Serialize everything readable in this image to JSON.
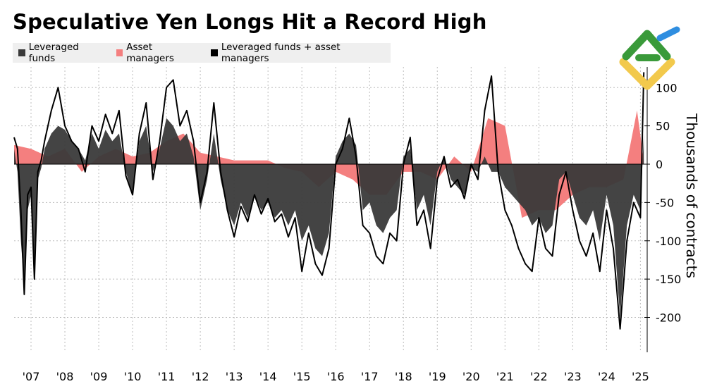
{
  "title": "Speculative Yen Longs Hit a Record High",
  "colors": {
    "leveraged": "#3a3a3a",
    "asset": "#f47f7f",
    "combined": "#000000",
    "grid": "#bdbdbd"
  },
  "legend": [
    {
      "label": "Leveraged funds",
      "color": "#3a3a3a"
    },
    {
      "label": "Asset managers",
      "color": "#f47f7f"
    },
    {
      "label": "Leveraged funds + asset managers",
      "color": "#000000"
    }
  ],
  "chart_data": {
    "type": "area",
    "title": "Speculative Yen Longs Hit a Record High",
    "ylabel": "Thousands of contracts",
    "xlabel": "",
    "ylim": [
      -240,
      150
    ],
    "yticks": [
      100,
      50,
      0,
      -50,
      -100,
      -150,
      -200
    ],
    "xlim": [
      2006.5,
      2025.2
    ],
    "xticks": [
      {
        "x": 2007,
        "label": "'07"
      },
      {
        "x": 2008,
        "label": "'08"
      },
      {
        "x": 2009,
        "label": "'09"
      },
      {
        "x": 2010,
        "label": "'10"
      },
      {
        "x": 2011,
        "label": "'11"
      },
      {
        "x": 2012,
        "label": "'12"
      },
      {
        "x": 2013,
        "label": "'13"
      },
      {
        "x": 2014,
        "label": "'14"
      },
      {
        "x": 2015,
        "label": "'15"
      },
      {
        "x": 2016,
        "label": "'16"
      },
      {
        "x": 2017,
        "label": "'17"
      },
      {
        "x": 2018,
        "label": "'18"
      },
      {
        "x": 2019,
        "label": "'19"
      },
      {
        "x": 2020,
        "label": "'20"
      },
      {
        "x": 2021,
        "label": "'21"
      },
      {
        "x": 2022,
        "label": "'22"
      },
      {
        "x": 2023,
        "label": "'23"
      },
      {
        "x": 2024,
        "label": "'24"
      },
      {
        "x": 2025,
        "label": "'25"
      }
    ],
    "series": [
      {
        "name": "Leveraged funds",
        "x": [
          2006.5,
          2006.6,
          2006.7,
          2006.8,
          2006.9,
          2007.0,
          2007.1,
          2007.2,
          2007.3,
          2007.4,
          2007.6,
          2007.8,
          2008.0,
          2008.2,
          2008.4,
          2008.6,
          2008.8,
          2009.0,
          2009.2,
          2009.4,
          2009.6,
          2009.8,
          2010.0,
          2010.2,
          2010.4,
          2010.6,
          2010.8,
          2011.0,
          2011.2,
          2011.4,
          2011.6,
          2011.8,
          2012.0,
          2012.2,
          2012.4,
          2012.6,
          2012.8,
          2013.0,
          2013.2,
          2013.4,
          2013.6,
          2013.8,
          2014.0,
          2014.2,
          2014.4,
          2014.6,
          2014.8,
          2015.0,
          2015.2,
          2015.4,
          2015.6,
          2015.8,
          2016.0,
          2016.2,
          2016.4,
          2016.6,
          2016.8,
          2017.0,
          2017.2,
          2017.4,
          2017.6,
          2017.8,
          2018.0,
          2018.2,
          2018.4,
          2018.6,
          2018.8,
          2019.0,
          2019.2,
          2019.4,
          2019.6,
          2019.8,
          2020.0,
          2020.2,
          2020.4,
          2020.6,
          2020.8,
          2021.0,
          2021.2,
          2021.4,
          2021.6,
          2021.8,
          2022.0,
          2022.2,
          2022.4,
          2022.6,
          2022.8,
          2023.0,
          2023.2,
          2023.4,
          2023.6,
          2023.8,
          2024.0,
          2024.2,
          2024.4,
          2024.6,
          2024.8,
          2025.0,
          2025.1
        ],
        "values": [
          20,
          -10,
          -100,
          -160,
          -60,
          -40,
          -140,
          -20,
          -5,
          20,
          40,
          50,
          45,
          30,
          20,
          5,
          40,
          20,
          45,
          30,
          40,
          -10,
          -40,
          30,
          50,
          -10,
          20,
          60,
          50,
          30,
          40,
          10,
          -60,
          -20,
          40,
          -20,
          -60,
          -80,
          -50,
          -70,
          -40,
          -60,
          -50,
          -70,
          -60,
          -80,
          -60,
          -100,
          -80,
          -110,
          -120,
          -90,
          10,
          30,
          40,
          25,
          -60,
          -50,
          -80,
          -90,
          -70,
          -60,
          10,
          20,
          -60,
          -40,
          -80,
          -10,
          10,
          -20,
          -30,
          -40,
          -5,
          -10,
          10,
          -10,
          -10,
          -30,
          -40,
          -50,
          -60,
          -80,
          -70,
          -90,
          -80,
          -20,
          -10,
          -40,
          -70,
          -80,
          -60,
          -100,
          -40,
          -80,
          -200,
          -80,
          -40,
          -60,
          40
        ],
        "color": "#3a3a3a"
      },
      {
        "name": "Asset managers",
        "x": [
          2006.5,
          2007.0,
          2007.5,
          2008.0,
          2008.5,
          2009.0,
          2009.5,
          2010.0,
          2010.5,
          2011.0,
          2011.5,
          2012.0,
          2012.5,
          2013.0,
          2013.5,
          2014.0,
          2014.5,
          2015.0,
          2015.5,
          2016.0,
          2016.5,
          2017.0,
          2017.5,
          2018.0,
          2018.5,
          2019.0,
          2019.5,
          2020.0,
          2020.5,
          2021.0,
          2021.5,
          2022.0,
          2022.5,
          2023.0,
          2023.5,
          2024.0,
          2024.5,
          2024.9,
          2025.1
        ],
        "values": [
          25,
          20,
          10,
          20,
          -10,
          10,
          20,
          10,
          15,
          30,
          40,
          15,
          10,
          5,
          5,
          5,
          -5,
          -10,
          -30,
          -10,
          -20,
          -40,
          -40,
          -10,
          -10,
          -20,
          10,
          -10,
          60,
          50,
          -70,
          -60,
          -60,
          -40,
          -30,
          -30,
          -20,
          70,
          5
        ],
        "color": "#f47f7f"
      },
      {
        "name": "Leveraged funds + asset managers",
        "x": [
          2006.5,
          2006.6,
          2006.7,
          2006.8,
          2006.9,
          2007.0,
          2007.1,
          2007.2,
          2007.3,
          2007.4,
          2007.6,
          2007.8,
          2008.0,
          2008.2,
          2008.4,
          2008.6,
          2008.8,
          2009.0,
          2009.2,
          2009.4,
          2009.6,
          2009.8,
          2010.0,
          2010.2,
          2010.4,
          2010.6,
          2010.8,
          2011.0,
          2011.2,
          2011.4,
          2011.6,
          2011.8,
          2012.0,
          2012.2,
          2012.4,
          2012.6,
          2012.8,
          2013.0,
          2013.2,
          2013.4,
          2013.6,
          2013.8,
          2014.0,
          2014.2,
          2014.4,
          2014.6,
          2014.8,
          2015.0,
          2015.2,
          2015.4,
          2015.6,
          2015.8,
          2016.0,
          2016.2,
          2016.4,
          2016.6,
          2016.8,
          2017.0,
          2017.2,
          2017.4,
          2017.6,
          2017.8,
          2018.0,
          2018.2,
          2018.4,
          2018.6,
          2018.8,
          2019.0,
          2019.2,
          2019.4,
          2019.6,
          2019.8,
          2020.0,
          2020.2,
          2020.4,
          2020.6,
          2020.8,
          2021.0,
          2021.2,
          2021.4,
          2021.6,
          2021.8,
          2022.0,
          2022.2,
          2022.4,
          2022.6,
          2022.8,
          2023.0,
          2023.2,
          2023.4,
          2023.6,
          2023.8,
          2024.0,
          2024.2,
          2024.4,
          2024.6,
          2024.8,
          2025.0,
          2025.1
        ],
        "values": [
          35,
          20,
          -60,
          -170,
          -40,
          -30,
          -150,
          -10,
          5,
          30,
          70,
          100,
          50,
          30,
          20,
          -10,
          50,
          30,
          65,
          40,
          70,
          -15,
          -40,
          40,
          80,
          -20,
          30,
          100,
          110,
          50,
          70,
          30,
          -50,
          -10,
          80,
          -10,
          -60,
          -95,
          -55,
          -75,
          -40,
          -65,
          -45,
          -75,
          -65,
          -95,
          -70,
          -140,
          -90,
          -130,
          -145,
          -110,
          0,
          20,
          60,
          10,
          -80,
          -90,
          -120,
          -130,
          -90,
          -100,
          0,
          35,
          -80,
          -60,
          -110,
          -20,
          10,
          -30,
          -20,
          -45,
          0,
          -20,
          70,
          115,
          -10,
          -60,
          -80,
          -110,
          -130,
          -140,
          -70,
          -110,
          -120,
          -40,
          -10,
          -60,
          -100,
          -120,
          -90,
          -140,
          -60,
          -110,
          -215,
          -100,
          -50,
          -70,
          120
        ],
        "color": "#000000"
      }
    ]
  },
  "ylabel": "Thousands of contracts"
}
